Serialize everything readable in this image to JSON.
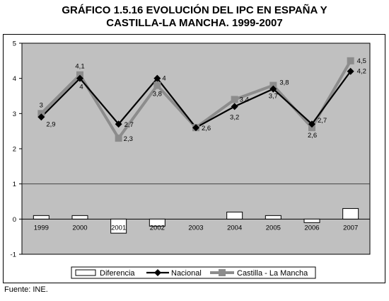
{
  "title_line1": "GRÁFICO 1.5.16 EVOLUCIÓN DEL IPC EN ESPAÑA Y",
  "title_line2": "CASTILLA-LA MANCHA. 1999-2007",
  "source": "Fuente: INE.",
  "chart_data": {
    "type": "line",
    "title": "GRÁFICO 1.5.16 EVOLUCIÓN DEL IPC EN ESPAÑA Y CASTILLA-LA MANCHA. 1999-2007",
    "categories": [
      "1999",
      "2000",
      "2001",
      "2002",
      "2003",
      "2004",
      "2005",
      "2006",
      "2007"
    ],
    "ylim": [
      -1,
      5
    ],
    "yticks": [
      "-1",
      "0",
      "1",
      "2",
      "3",
      "4",
      "5"
    ],
    "grid": "horizontal at 1 only",
    "legend_position": "bottom",
    "plot_background": "#c0c0c0",
    "series": [
      {
        "name": "Diferencia",
        "kind": "bar",
        "values": [
          0.1,
          0.1,
          -0.4,
          -0.2,
          0.0,
          0.2,
          0.1,
          -0.1,
          0.3
        ],
        "color": "#ffffff"
      },
      {
        "name": "Nacional",
        "kind": "line",
        "marker": "diamond",
        "values": [
          2.9,
          4.0,
          2.7,
          4.0,
          2.6,
          3.2,
          3.7,
          2.7,
          4.2
        ],
        "labels": [
          "2,9",
          "4",
          "2,7",
          "4",
          "",
          "3,2",
          "3,7",
          "2,7",
          "4,2"
        ],
        "color": "#000000"
      },
      {
        "name": "Castilla - La Mancha",
        "kind": "line",
        "marker": "square",
        "values": [
          3.0,
          4.1,
          2.3,
          3.8,
          2.6,
          3.4,
          3.8,
          2.6,
          4.5
        ],
        "labels": [
          "3",
          "4,1",
          "2,3",
          "3,8",
          "2,6",
          "3,4",
          "3,8",
          "2,6",
          "4,5"
        ],
        "color": "#8c8c8c"
      }
    ]
  }
}
